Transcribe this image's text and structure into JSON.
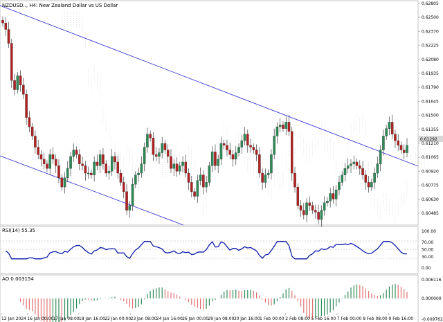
{
  "main_panel": {
    "title": "NZDUSD.., H4: New Zealand Dollar vs US Dollar",
    "price_ticks": [
      "0.62805",
      "0.62500",
      "0.62370",
      "0.62225",
      "0.62080",
      "0.61935",
      "0.61790",
      "0.61645",
      "0.61500",
      "0.61355",
      "0.61210",
      "0.61065",
      "0.60920",
      "0.60775",
      "0.60630",
      "0.60485"
    ],
    "current_price": "0.61292",
    "colors": {
      "bull": "#2e8b57",
      "bear": "#b22222",
      "channel": "#3a3adb",
      "cloud": "#cccccc"
    }
  },
  "rsi_panel": {
    "title": "RSI(14) 55.35",
    "ticks": [
      "100.00",
      "70.00",
      "50.00",
      "30.00",
      "0.00"
    ],
    "color": "#0a1aa8"
  },
  "ao_panel": {
    "title": "AO 0.003154",
    "ticks": [
      "0.006116",
      "0.000000",
      "-0.009762"
    ],
    "colors": {
      "up": "#2e8b57",
      "down": "#e07070"
    }
  },
  "time_axis": [
    "12 Jan 2024",
    "16 Jan 00:00",
    "17 Jan 08:00",
    "18 Jan 16:00",
    "22 Jan 00:00",
    "23 Jan 08:00",
    "24 Jan 16:00",
    "26 Jan 00:00",
    "29 Jan 08:00",
    "30 Jan 16:00",
    "1 Feb 00:00",
    "2 Feb 08:00",
    "5 Feb 16:00",
    "7 Feb 00:00",
    "8 Feb 08:00",
    "9 Feb 16:00"
  ],
  "chart_data": {
    "type": "candlestick",
    "symbol": "NZDUSD",
    "timeframe": "H4",
    "price_range": [
      0.6044,
      0.6286
    ],
    "candles_close_approx": [
      0.6262,
      0.6255,
      0.624,
      0.62,
      0.619,
      0.6205,
      0.6195,
      0.6185,
      0.616,
      0.615,
      0.614,
      0.6128,
      0.612,
      0.6115,
      0.611,
      0.6105,
      0.612,
      0.6115,
      0.6108,
      0.6095,
      0.6085,
      0.6095,
      0.6105,
      0.6118,
      0.6125,
      0.612,
      0.611,
      0.6108,
      0.61,
      0.61,
      0.6098,
      0.6112,
      0.6108,
      0.612,
      0.611,
      0.61,
      0.6102,
      0.6118,
      0.6112,
      0.61,
      0.609,
      0.608,
      0.606,
      0.6065,
      0.6088,
      0.6098,
      0.61,
      0.611,
      0.6128,
      0.6142,
      0.6138,
      0.612,
      0.6118,
      0.6122,
      0.6132,
      0.6125,
      0.6118,
      0.6105,
      0.611,
      0.6102,
      0.6108,
      0.6112,
      0.61,
      0.609,
      0.608,
      0.6075,
      0.6092,
      0.6098,
      0.6085,
      0.609,
      0.6108,
      0.6123,
      0.6108,
      0.6115,
      0.6132,
      0.613,
      0.6125,
      0.612,
      0.6115,
      0.6122,
      0.6128,
      0.6135,
      0.6142,
      0.613,
      0.6128,
      0.6125,
      0.612,
      0.61,
      0.609,
      0.6098,
      0.61,
      0.612,
      0.614,
      0.615,
      0.6152,
      0.6148,
      0.6155,
      0.6145,
      0.61,
      0.6085,
      0.6065,
      0.606,
      0.6055,
      0.6068,
      0.6065,
      0.606,
      0.6058,
      0.605,
      0.606,
      0.6068,
      0.607,
      0.6078,
      0.6072,
      0.6082,
      0.609,
      0.6098,
      0.6105,
      0.6108,
      0.611,
      0.6112,
      0.6108,
      0.6105,
      0.6098,
      0.609,
      0.6085,
      0.609,
      0.61,
      0.611,
      0.6125,
      0.614,
      0.6148,
      0.6155,
      0.6142,
      0.6135,
      0.613,
      0.6125,
      0.6122,
      0.613
    ],
    "rsi_range": [
      0,
      100
    ],
    "rsi_levels": [
      30,
      50,
      70
    ],
    "ao_range": [
      -0.009762,
      0.006116
    ]
  }
}
